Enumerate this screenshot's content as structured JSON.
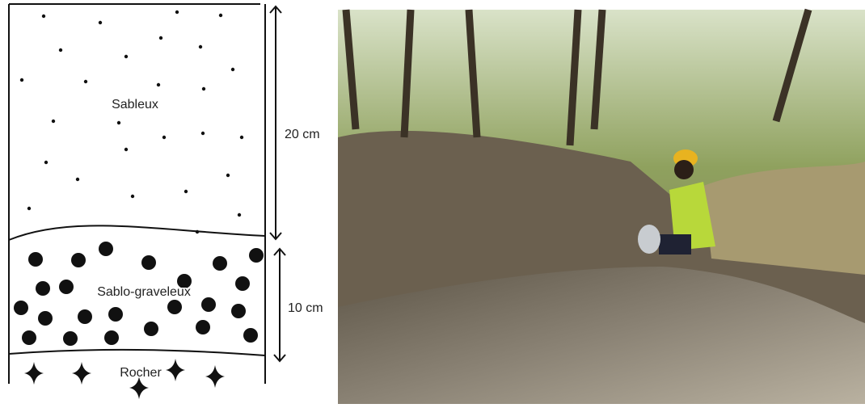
{
  "layers": [
    {
      "label": "Sableux"
    },
    {
      "label": "Sablo-graveleux"
    },
    {
      "label": "Rocher"
    }
  ],
  "thicknesses": [
    {
      "label": "20 cm"
    },
    {
      "label": "10 cm"
    }
  ]
}
